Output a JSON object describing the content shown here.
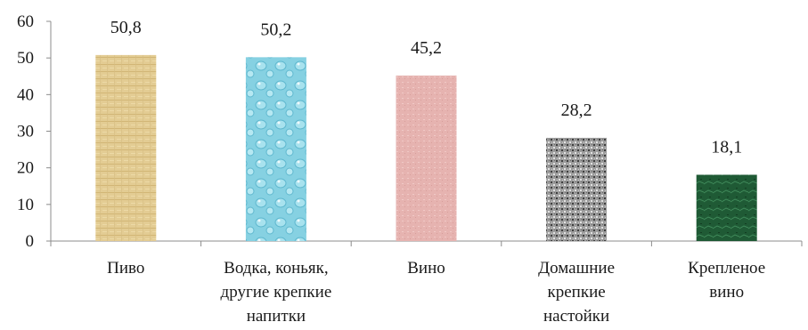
{
  "chart_data": {
    "type": "bar",
    "categories": [
      [
        "Пиво"
      ],
      [
        "Водка, коньяк,",
        "другие крепкие",
        "напитки"
      ],
      [
        "Вино"
      ],
      [
        "Домашние",
        "крепкие",
        "настойки"
      ],
      [
        "Крепленое",
        "вино"
      ]
    ],
    "values": [
      50.8,
      50.2,
      45.2,
      28.2,
      18.1
    ],
    "data_labels": [
      "50,8",
      "50,2",
      "45,2",
      "28,2",
      "18,1"
    ],
    "y_ticks": [
      "0",
      "10",
      "20",
      "30",
      "40",
      "50",
      "60"
    ],
    "ylim": [
      0,
      60
    ],
    "grid": false,
    "legend": "none",
    "bar_fills": [
      "#e0c98c",
      "#8fd6e4",
      "#e8b7b4",
      "#9a9a9a",
      "#1f5a35"
    ],
    "bar_textures": [
      "papyrus",
      "water-droplets",
      "pink-tissue",
      "granite",
      "green-marble"
    ]
  }
}
